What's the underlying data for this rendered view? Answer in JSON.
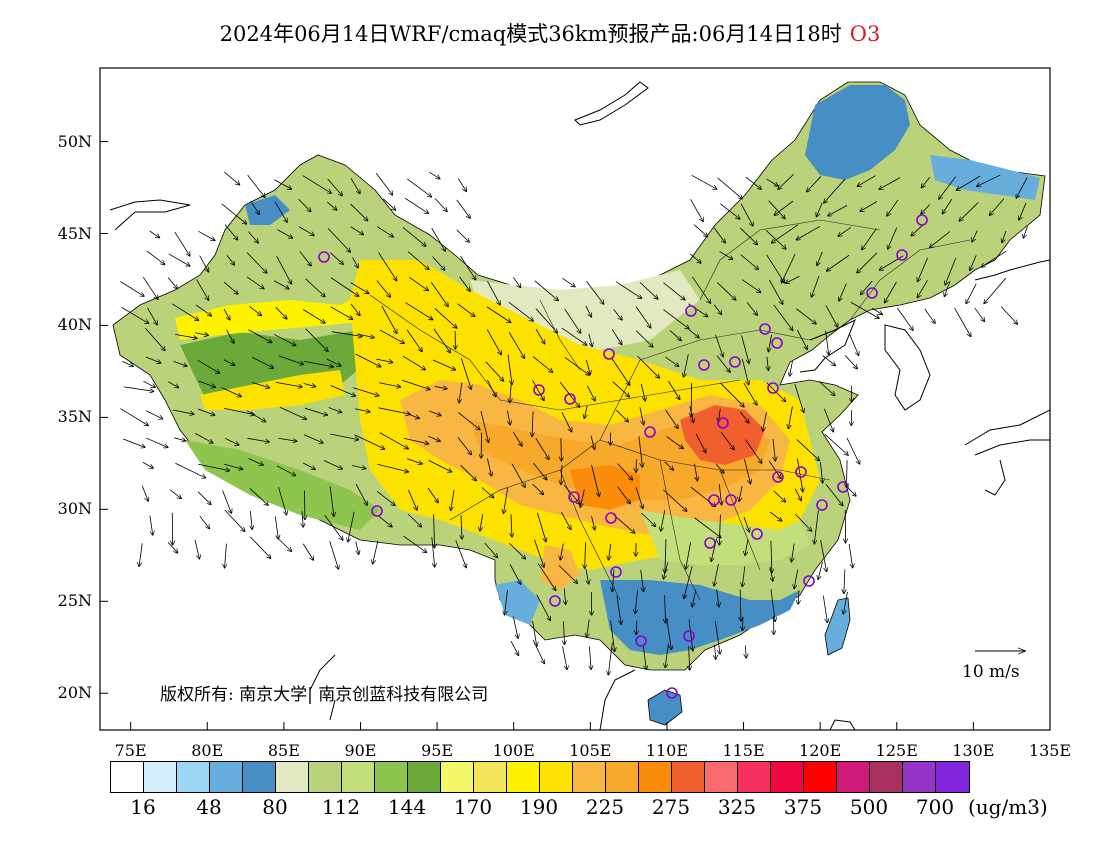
{
  "title": {
    "text": "2024年06月14日WRF/cmaq模式36km预报产品:06月14日18时",
    "species": "O3",
    "species_color": "#d62020"
  },
  "map": {
    "lat_range": [
      18,
      54
    ],
    "lon_range": [
      73,
      135
    ],
    "lat_labels": [
      "20N",
      "25N",
      "30N",
      "35N",
      "40N",
      "45N",
      "50N"
    ],
    "lon_labels": [
      "75E",
      "80E",
      "85E",
      "90E",
      "95E",
      "100E",
      "105E",
      "110E",
      "115E",
      "120E",
      "125E",
      "130E",
      "135E"
    ],
    "wind_reference": "10 m/s",
    "copyright": "版权所有: 南京大学| 南京创蓝科技有限公司",
    "background_color": "#ffffff",
    "border_color": "#000000",
    "station_marker_color": "#8b00d4"
  },
  "legend": {
    "colors": [
      "#ffffff",
      "#d4eefb",
      "#9ad6f3",
      "#68aedd",
      "#468ec4",
      "#e0e9c0",
      "#bad37a",
      "#c3df7c",
      "#8ec54e",
      "#6aa93a",
      "#f2f867",
      "#f4e45a",
      "#fff200",
      "#fde100",
      "#f8b742",
      "#f7a92b",
      "#f98c0a",
      "#f15f2f",
      "#fb6a6f",
      "#f5305e",
      "#f10843",
      "#fe0000",
      "#cf1a7a",
      "#a8315f",
      "#9434c6",
      "#8226dd"
    ],
    "labels": [
      "16",
      "48",
      "80",
      "112",
      "144",
      "170",
      "190",
      "225",
      "275",
      "325",
      "375",
      "500",
      "700"
    ],
    "unit": "(ug/m3)"
  }
}
